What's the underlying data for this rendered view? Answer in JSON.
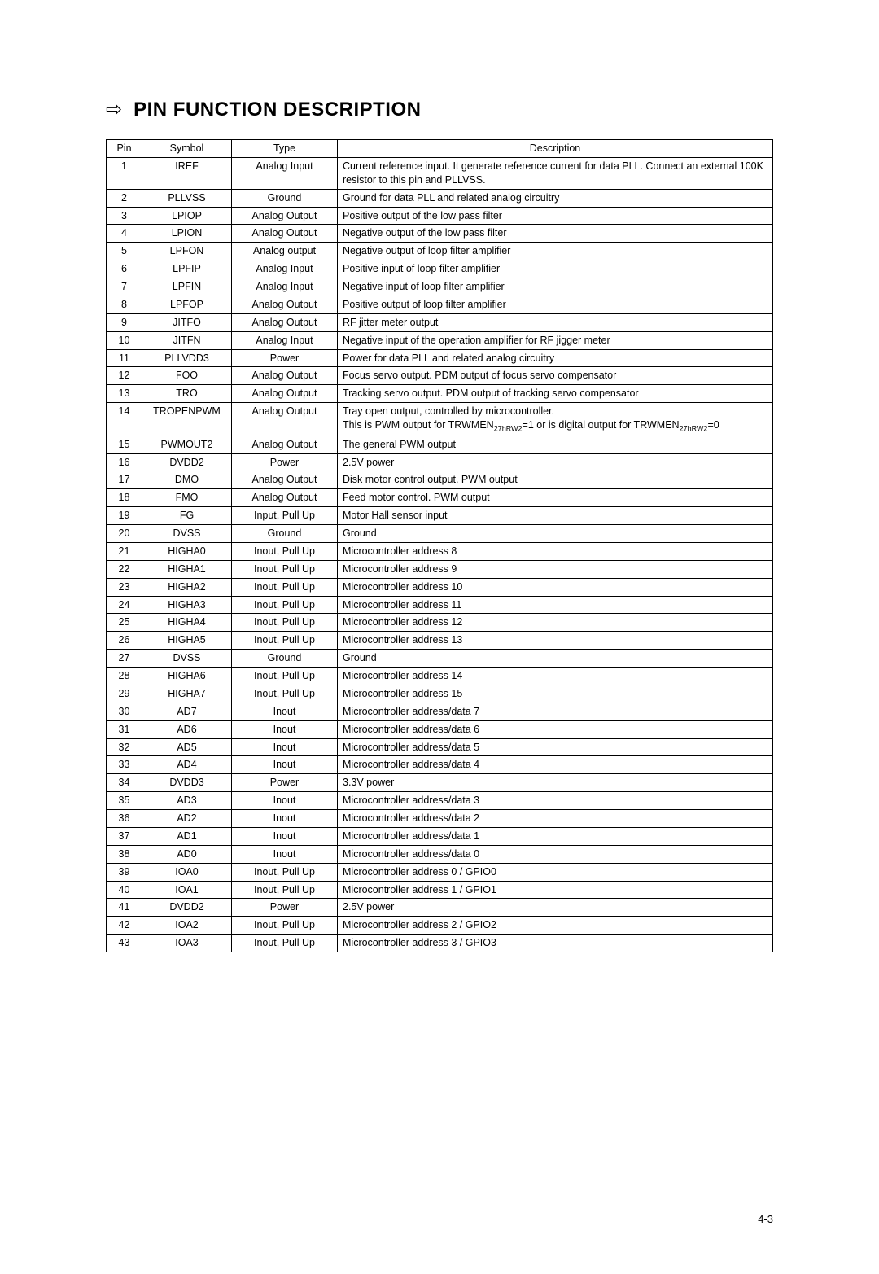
{
  "title": "PIN FUNCTION DESCRIPTION",
  "columns": {
    "pin": "Pin",
    "symbol": "Symbol",
    "type": "Type",
    "description": "Description"
  },
  "rows": [
    {
      "pin": "1",
      "symbol": "IREF",
      "type": "Analog Input",
      "desc": "Current reference input. It generate reference current for data PLL. Connect an external 100K resistor to this pin and PLLVSS."
    },
    {
      "pin": "2",
      "symbol": "PLLVSS",
      "type": "Ground",
      "desc": "Ground for data PLL and related analog circuitry"
    },
    {
      "pin": "3",
      "symbol": "LPIOP",
      "type": "Analog Output",
      "desc": "Positive output of the low pass filter"
    },
    {
      "pin": "4",
      "symbol": "LPION",
      "type": "Analog Output",
      "desc": "Negative output of the low pass filter"
    },
    {
      "pin": "5",
      "symbol": "LPFON",
      "type": "Analog output",
      "desc": "Negative output of loop filter amplifier"
    },
    {
      "pin": "6",
      "symbol": "LPFIP",
      "type": "Analog Input",
      "desc": "Positive input of loop filter amplifier"
    },
    {
      "pin": "7",
      "symbol": "LPFIN",
      "type": "Analog Input",
      "desc": "Negative input of loop filter amplifier"
    },
    {
      "pin": "8",
      "symbol": "LPFOP",
      "type": "Analog Output",
      "desc": "Positive output of loop filter amplifier"
    },
    {
      "pin": "9",
      "symbol": "JITFO",
      "type": "Analog Output",
      "desc": "RF jitter meter output"
    },
    {
      "pin": "10",
      "symbol": "JITFN",
      "type": "Analog Input",
      "desc": "Negative input of the operation amplifier for RF jigger meter"
    },
    {
      "pin": "11",
      "symbol": "PLLVDD3",
      "type": "Power",
      "desc": "Power for data PLL and related analog circuitry"
    },
    {
      "pin": "12",
      "symbol": "FOO",
      "type": "Analog Output",
      "desc": "Focus servo output. PDM output of focus servo compensator"
    },
    {
      "pin": "13",
      "symbol": "TRO",
      "type": "Analog Output",
      "desc": "Tracking servo output. PDM output of tracking servo compensator"
    },
    {
      "pin": "14",
      "symbol": "TROPENPWM",
      "type": "Analog Output",
      "desc_html": "Tray open output, controlled by microcontroller.<br>This is PWM output for TRWMEN<span class=\"sub\">27hRW2</span>=1 or is digital output for TRWMEN<span class=\"sub\">27hRW2</span>=0"
    },
    {
      "pin": "15",
      "symbol": "PWMOUT2",
      "type": "Analog Output",
      "desc": "The general PWM output"
    },
    {
      "pin": "16",
      "symbol": "DVDD2",
      "type": "Power",
      "desc": "2.5V power"
    },
    {
      "pin": "17",
      "symbol": "DMO",
      "type": "Analog Output",
      "desc": "Disk motor control output. PWM output"
    },
    {
      "pin": "18",
      "symbol": "FMO",
      "type": "Analog Output",
      "desc": "Feed motor control. PWM output"
    },
    {
      "pin": "19",
      "symbol": "FG",
      "type": "Input, Pull Up",
      "desc": "Motor Hall sensor input"
    },
    {
      "pin": "20",
      "symbol": "DVSS",
      "type": "Ground",
      "desc": "Ground"
    },
    {
      "pin": "21",
      "symbol": "HIGHA0",
      "type": "Inout, Pull Up",
      "desc": "Microcontroller address 8"
    },
    {
      "pin": "22",
      "symbol": "HIGHA1",
      "type": "Inout, Pull Up",
      "desc": "Microcontroller address 9"
    },
    {
      "pin": "23",
      "symbol": "HIGHA2",
      "type": "Inout, Pull Up",
      "desc": "Microcontroller address 10"
    },
    {
      "pin": "24",
      "symbol": "HIGHA3",
      "type": "Inout, Pull Up",
      "desc": "Microcontroller address 11"
    },
    {
      "pin": "25",
      "symbol": "HIGHA4",
      "type": "Inout, Pull Up",
      "desc": "Microcontroller address 12"
    },
    {
      "pin": "26",
      "symbol": "HIGHA5",
      "type": "Inout, Pull Up",
      "desc": "Microcontroller address 13"
    },
    {
      "pin": "27",
      "symbol": "DVSS",
      "type": "Ground",
      "desc": "Ground"
    },
    {
      "pin": "28",
      "symbol": "HIGHA6",
      "type": "Inout, Pull Up",
      "desc": "Microcontroller address 14"
    },
    {
      "pin": "29",
      "symbol": "HIGHA7",
      "type": "Inout, Pull Up",
      "desc": "Microcontroller address 15"
    },
    {
      "pin": "30",
      "symbol": "AD7",
      "type": "Inout",
      "desc": "Microcontroller address/data 7"
    },
    {
      "pin": "31",
      "symbol": "AD6",
      "type": "Inout",
      "desc": "Microcontroller address/data 6"
    },
    {
      "pin": "32",
      "symbol": "AD5",
      "type": "Inout",
      "desc": "Microcontroller address/data 5"
    },
    {
      "pin": "33",
      "symbol": "AD4",
      "type": "Inout",
      "desc": "Microcontroller address/data 4"
    },
    {
      "pin": "34",
      "symbol": "DVDD3",
      "type": "Power",
      "desc": "3.3V power"
    },
    {
      "pin": "35",
      "symbol": "AD3",
      "type": "Inout",
      "desc": "Microcontroller address/data 3"
    },
    {
      "pin": "36",
      "symbol": "AD2",
      "type": "Inout",
      "desc": "Microcontroller address/data 2"
    },
    {
      "pin": "37",
      "symbol": "AD1",
      "type": "Inout",
      "desc": "Microcontroller address/data 1"
    },
    {
      "pin": "38",
      "symbol": "AD0",
      "type": "Inout",
      "desc": "Microcontroller address/data 0"
    },
    {
      "pin": "39",
      "symbol": "IOA0",
      "type": "Inout, Pull Up",
      "desc": "Microcontroller address 0 / GPIO0"
    },
    {
      "pin": "40",
      "symbol": "IOA1",
      "type": "Inout, Pull Up",
      "desc": "Microcontroller address 1 / GPIO1"
    },
    {
      "pin": "41",
      "symbol": "DVDD2",
      "type": "Power",
      "desc": "2.5V power"
    },
    {
      "pin": "42",
      "symbol": "IOA2",
      "type": "Inout, Pull Up",
      "desc": "Microcontroller address 2 / GPIO2"
    },
    {
      "pin": "43",
      "symbol": "IOA3",
      "type": "Inout, Pull Up",
      "desc": "Microcontroller address 3 / GPIO3"
    }
  ],
  "page_number": "4-3"
}
